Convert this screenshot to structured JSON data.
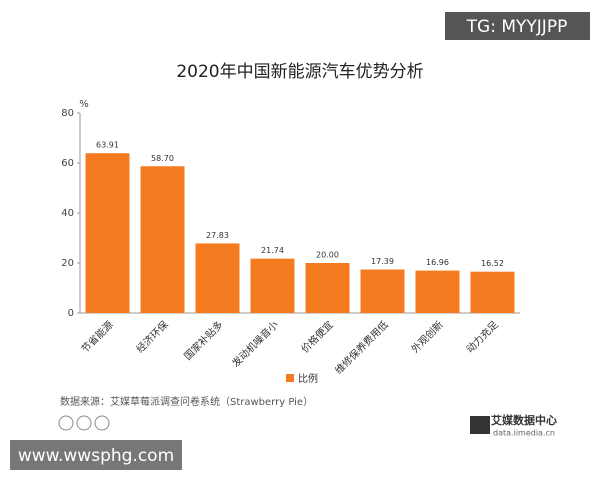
{
  "chart_data": {
    "type": "bar",
    "title": "2020年中国新能源汽车优势分析",
    "y_label": "%",
    "categories": [
      "节省能源",
      "经济环保",
      "国家补贴多",
      "发动机噪音小",
      "价格便宜",
      "维修保养费用低",
      "外观创新",
      "动力充足"
    ],
    "series": [
      {
        "name": "比例",
        "color": "#f47b20",
        "values": [
          63.91,
          58.7,
          27.83,
          21.74,
          20.0,
          17.39,
          16.96,
          16.52
        ],
        "value_labels": [
          "63.91",
          "58.70",
          "27.83",
          "21.74",
          "20.00",
          "17.39",
          "16.96",
          "16.52"
        ]
      }
    ],
    "ylim": [
      0,
      80
    ],
    "yticks": [
      0,
      20,
      40,
      60,
      80
    ],
    "grid": false,
    "legend": "bottom",
    "source": "数据来源：艾媒草莓派调查问卷系统（Strawberry Pie）"
  },
  "watermarks": {
    "top": "TG: MYYJJPP",
    "bottom": "www.wwsphg.com",
    "logo": "艾媒数据中心",
    "logo_url": "data.iimedia.cn"
  }
}
